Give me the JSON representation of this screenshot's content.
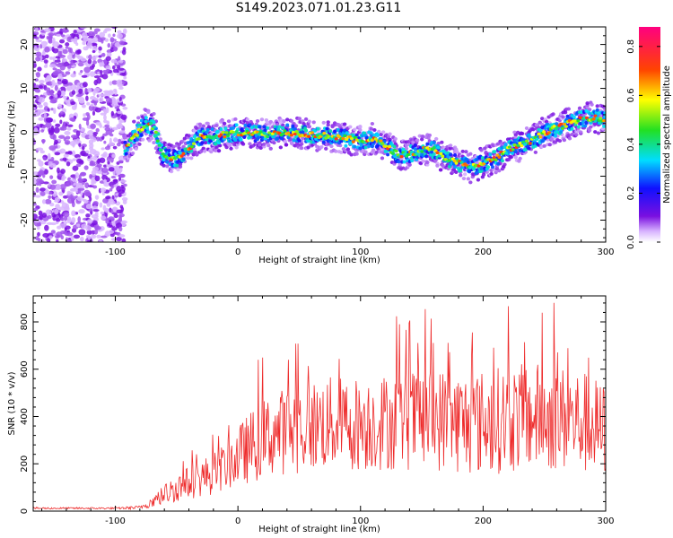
{
  "title": "S149.2023.071.01.23.G11",
  "colors": {
    "snr_line": "#ee2b2b",
    "axis": "#000000"
  },
  "chart_data": [
    {
      "type": "heatmap",
      "xlabel": "Height of straight line (km)",
      "ylabel": "Frequency (Hz)",
      "xlim": [
        -167,
        300
      ],
      "ylim": [
        -25,
        24
      ],
      "xticks": [
        -100,
        0,
        100,
        200,
        300
      ],
      "yticks": [
        -20,
        -10,
        0,
        10,
        20
      ],
      "colorbar": {
        "label": "Normalized spectral amplitude",
        "range": [
          0,
          0.88
        ],
        "ticks": [
          0.0,
          0.2,
          0.4,
          0.6,
          0.8
        ],
        "colormap": "rainbow (purple-blue-cyan-green-yellow-red-magenta)"
      },
      "noise_region_x": [
        -167,
        -92
      ],
      "ridge": {
        "x": [
          -92,
          -85,
          -75,
          -68,
          -62,
          -55,
          -50,
          -45,
          -38,
          -30,
          -20,
          -10,
          0,
          10,
          20,
          40,
          60,
          80,
          100,
          110,
          120,
          130,
          140,
          150,
          160,
          170,
          180,
          190,
          200,
          210,
          220,
          230,
          240,
          250,
          260,
          270,
          280,
          290,
          300
        ],
        "freq": [
          -4,
          -1,
          2,
          1,
          -5,
          -6,
          -6,
          -5,
          -3,
          -1,
          -1,
          -0.5,
          0,
          0,
          -0.5,
          0,
          -0.5,
          -1,
          -2,
          -1.5,
          -3,
          -5,
          -5,
          -4,
          -4,
          -6,
          -7,
          -8,
          -7,
          -6,
          -4,
          -3,
          -2,
          0,
          1,
          2,
          3,
          3.5,
          3
        ]
      }
    },
    {
      "type": "line",
      "xlabel": "Height of straight line (km)",
      "ylabel": "SNR (10 * v/v)",
      "xlim": [
        -167,
        300
      ],
      "ylim": [
        0,
        910
      ],
      "xticks": [
        -100,
        0,
        100,
        200,
        300
      ],
      "yticks": [
        0,
        200,
        400,
        600,
        800
      ],
      "envelope": {
        "x": [
          -167,
          -100,
          -80,
          -70,
          -60,
          -50,
          -40,
          -30,
          -20,
          -10,
          0,
          10,
          20,
          30,
          50,
          70,
          100,
          130,
          160,
          190,
          220,
          250,
          280,
          300
        ],
        "mid": [
          12,
          12,
          15,
          40,
          70,
          100,
          120,
          140,
          160,
          190,
          230,
          270,
          300,
          330,
          350,
          370,
          370,
          380,
          390,
          370,
          390,
          400,
          380,
          330
        ],
        "amp": [
          4,
          4,
          8,
          25,
          45,
          60,
          70,
          80,
          90,
          100,
          130,
          150,
          170,
          180,
          190,
          200,
          200,
          210,
          220,
          220,
          230,
          230,
          220,
          210
        ]
      }
    }
  ]
}
